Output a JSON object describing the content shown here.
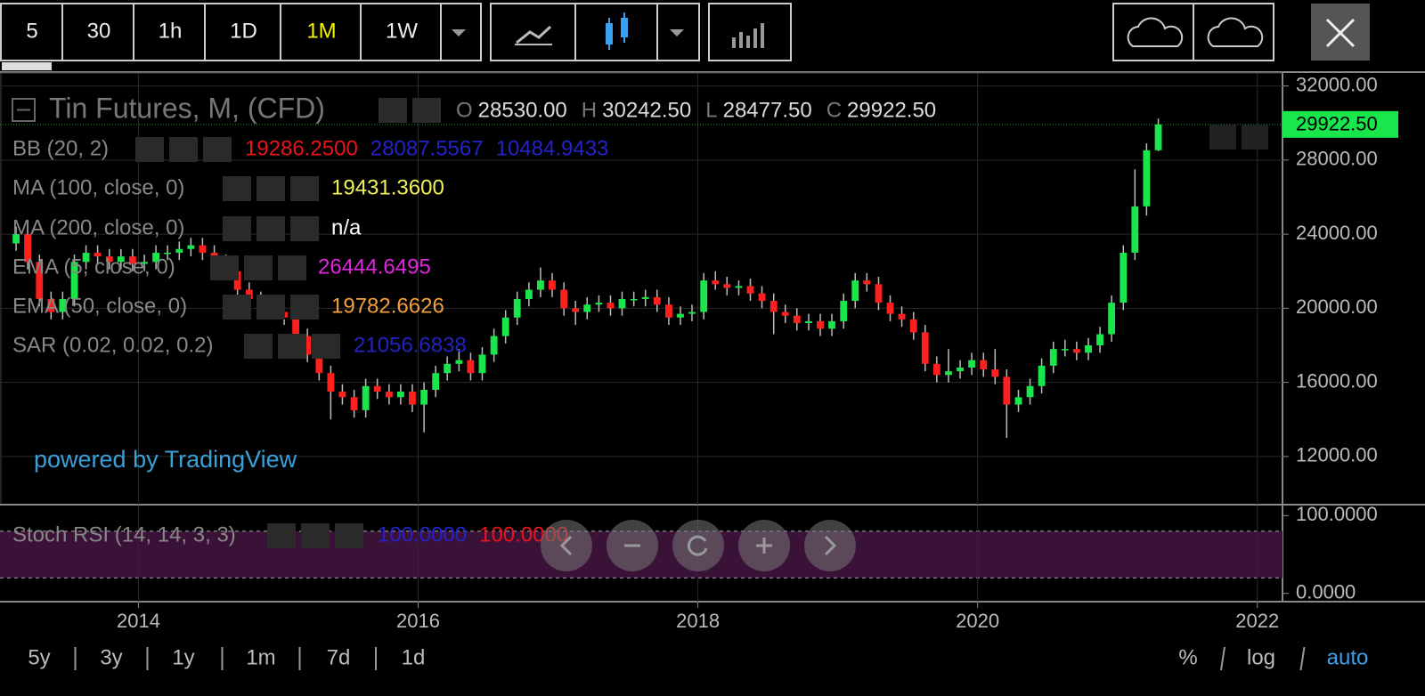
{
  "toolbar": {
    "intervals": [
      "5",
      "30",
      "1h",
      "1D",
      "1M",
      "1W"
    ],
    "active_interval": 4
  },
  "legend": {
    "symbol": "Tin Futures, M, (CFD)",
    "ohlc": [
      {
        "key": "O",
        "value": "28530.00"
      },
      {
        "key": "H",
        "value": "30242.50"
      },
      {
        "key": "L",
        "value": "28477.50"
      },
      {
        "key": "C",
        "value": "29922.50"
      }
    ]
  },
  "indicators": [
    {
      "name": "BB (20, 2)",
      "values": [
        {
          "text": "19286.2500",
          "color": "#e8141c"
        },
        {
          "text": "28087.5567",
          "color": "#2323c8"
        },
        {
          "text": "10484.9433",
          "color": "#2323c8"
        }
      ]
    },
    {
      "name": "MA (100, close, 0)",
      "values": [
        {
          "text": "19431.3600",
          "color": "#f2f25a"
        }
      ]
    },
    {
      "name": "MA (200, close, 0)",
      "values": [
        {
          "text": "n/a",
          "color": "#ffffff"
        }
      ]
    },
    {
      "name": "EMA (5, close, 0)",
      "values": [
        {
          "text": "26444.6495",
          "color": "#e026e0"
        }
      ]
    },
    {
      "name": "EMA (50, close, 0)",
      "values": [
        {
          "text": "19782.6626",
          "color": "#f0a03c"
        }
      ]
    },
    {
      "name": "SAR (0.02, 0.02, 0.2)",
      "values": [
        {
          "text": "21056.6838",
          "color": "#2323c0"
        }
      ]
    }
  ],
  "watermark": "powered by TradingView",
  "last_price": "29922.50",
  "chart_data": {
    "type": "candlestick",
    "x": [
      2013.125,
      2013.208,
      2013.292,
      2013.375,
      2013.458,
      2013.542,
      2013.625,
      2013.708,
      2013.792,
      2013.875,
      2013.958,
      2014.042,
      2014.125,
      2014.208,
      2014.292,
      2014.375,
      2014.458,
      2014.542,
      2014.625,
      2014.708,
      2014.792,
      2014.875,
      2014.958,
      2015.042,
      2015.125,
      2015.208,
      2015.292,
      2015.375,
      2015.458,
      2015.542,
      2015.625,
      2015.708,
      2015.792,
      2015.875,
      2015.958,
      2016.042,
      2016.125,
      2016.208,
      2016.292,
      2016.375,
      2016.458,
      2016.542,
      2016.625,
      2016.708,
      2016.792,
      2016.875,
      2016.958,
      2017.042,
      2017.125,
      2017.208,
      2017.292,
      2017.375,
      2017.458,
      2017.542,
      2017.625,
      2017.708,
      2017.792,
      2017.875,
      2017.958,
      2018.042,
      2018.125,
      2018.208,
      2018.292,
      2018.375,
      2018.458,
      2018.542,
      2018.625,
      2018.708,
      2018.792,
      2018.875,
      2018.958,
      2019.042,
      2019.125,
      2019.208,
      2019.292,
      2019.375,
      2019.458,
      2019.542,
      2019.625,
      2019.708,
      2019.792,
      2019.875,
      2019.958,
      2020.042,
      2020.125,
      2020.208,
      2020.292,
      2020.375,
      2020.458,
      2020.542,
      2020.625,
      2020.708,
      2020.792,
      2020.875,
      2020.958,
      2021.042,
      2021.125,
      2021.208,
      2021.292
    ],
    "open": [
      23500,
      24000,
      22500,
      20500,
      19800,
      20500,
      22500,
      23000,
      22800,
      22500,
      22800,
      22400,
      22500,
      23000,
      23000,
      23200,
      23400,
      23000,
      22500,
      22000,
      21000,
      20500,
      20200,
      19800,
      19500,
      18500,
      17500,
      16500,
      15500,
      15200,
      14500,
      15800,
      15500,
      15200,
      15500,
      14800,
      15600,
      16500,
      17000,
      17200,
      16500,
      17500,
      18500,
      19500,
      20500,
      21000,
      21500,
      21000,
      20000,
      19800,
      20200,
      20300,
      20000,
      20500,
      20500,
      20600,
      20200,
      19500,
      19700,
      19800,
      21500,
      21300,
      21100,
      21200,
      20800,
      20400,
      19800,
      19600,
      19200,
      19300,
      18900,
      19300,
      20400,
      21500,
      21300,
      20300,
      19700,
      19400,
      18700,
      17000,
      16400,
      16600,
      16800,
      17200,
      16700,
      16300,
      14800,
      15200,
      15800,
      16900,
      17800,
      17800,
      17600,
      18000,
      18600,
      20300,
      23000,
      25500,
      28530
    ],
    "high": [
      24400,
      24400,
      22900,
      20900,
      20900,
      22900,
      23400,
      23400,
      23200,
      23200,
      23200,
      22900,
      23400,
      23400,
      23600,
      23800,
      23800,
      23400,
      22900,
      22400,
      21400,
      20900,
      20600,
      20200,
      19900,
      18900,
      17900,
      16900,
      15900,
      15600,
      16200,
      16200,
      15900,
      15900,
      15900,
      16000,
      16900,
      17400,
      17800,
      17600,
      17900,
      18900,
      19900,
      20900,
      21400,
      22200,
      21900,
      21400,
      20400,
      20600,
      20700,
      20700,
      20900,
      20900,
      21000,
      21000,
      20600,
      20100,
      20200,
      21900,
      22000,
      21700,
      21500,
      21600,
      21200,
      20800,
      20200,
      20000,
      19700,
      19700,
      19700,
      20800,
      21900,
      21900,
      21700,
      20700,
      20100,
      19800,
      19100,
      17400,
      17800,
      17200,
      17600,
      17600,
      17800,
      16700,
      15600,
      16200,
      17300,
      18200,
      18300,
      18200,
      18400,
      19000,
      20700,
      23400,
      27500,
      28900,
      30242.5
    ],
    "low": [
      23100,
      22100,
      20100,
      19400,
      19400,
      20100,
      22100,
      22400,
      22100,
      22100,
      22000,
      22000,
      22100,
      22600,
      22600,
      22800,
      22600,
      22100,
      21600,
      20600,
      20100,
      19800,
      19400,
      19100,
      18100,
      17100,
      16100,
      14000,
      14800,
      14100,
      14100,
      15100,
      14800,
      14800,
      14400,
      13300,
      15200,
      16100,
      16600,
      16100,
      16100,
      17100,
      18100,
      19100,
      20100,
      20600,
      20600,
      19600,
      19100,
      19400,
      19800,
      19600,
      19600,
      20100,
      20100,
      19800,
      19100,
      19100,
      19300,
      19400,
      21000,
      20700,
      20700,
      20400,
      20000,
      18600,
      19200,
      18800,
      18800,
      18500,
      18500,
      18900,
      20000,
      20900,
      19900,
      19300,
      19000,
      18300,
      16600,
      16000,
      16000,
      16200,
      16400,
      16300,
      15900,
      13000,
      14400,
      14800,
      15400,
      16500,
      17400,
      17200,
      17200,
      17600,
      18200,
      19900,
      22600,
      25000,
      28477.5
    ],
    "close": [
      24000,
      22500,
      20500,
      19800,
      20500,
      22500,
      23000,
      22800,
      22500,
      22800,
      22400,
      22500,
      23000,
      23000,
      23200,
      23400,
      23000,
      22500,
      22000,
      21000,
      20500,
      20200,
      19800,
      19500,
      18500,
      17500,
      16500,
      15500,
      15200,
      14500,
      15800,
      15500,
      15200,
      15500,
      14800,
      15600,
      16500,
      17000,
      17200,
      16500,
      17500,
      18500,
      19500,
      20500,
      21000,
      21500,
      21000,
      20000,
      19800,
      20200,
      20300,
      20000,
      20500,
      20500,
      20600,
      20200,
      19500,
      19700,
      19800,
      21500,
      21300,
      21100,
      21200,
      20800,
      20400,
      19800,
      19600,
      19200,
      19300,
      18900,
      19300,
      20400,
      21500,
      21300,
      20300,
      19700,
      19400,
      18700,
      17000,
      16400,
      16600,
      16800,
      17200,
      16700,
      16300,
      14800,
      15200,
      15800,
      16900,
      17800,
      17800,
      17600,
      18000,
      18600,
      20300,
      23000,
      25500,
      28530,
      29922.5
    ],
    "up_color": "#19e64b",
    "down_color": "#ff1f1f",
    "xlim": [
      2013.01,
      2022.18
    ],
    "xticks": [
      2014,
      2016,
      2018,
      2020,
      2022
    ],
    "ylim": [
      9400,
      32700
    ],
    "yticks": [
      {
        "value": 12000,
        "label": "12000.00"
      },
      {
        "value": 16000,
        "label": "16000.00"
      },
      {
        "value": 20000,
        "label": "20000.00"
      },
      {
        "value": 24000,
        "label": "24000.00"
      },
      {
        "value": 28000,
        "label": "28000.00"
      },
      {
        "value": 32000,
        "label": "32000.00"
      }
    ],
    "grid": true
  },
  "stoch": {
    "name": "Stoch RSI (14, 14, 3, 3)",
    "values": [
      {
        "text": "100.0000",
        "color": "#2323c8"
      },
      {
        "text": "100.0000",
        "color": "#e8141c"
      }
    ],
    "ylim": [
      -10.6,
      113
    ],
    "yticks": [
      {
        "value": 100,
        "label": "100.0000"
      },
      {
        "value": 0,
        "label": "0.0000"
      }
    ],
    "band": [
      20,
      80
    ]
  },
  "ranges": [
    "5y",
    "3y",
    "1y",
    "1m",
    "7d",
    "1d"
  ],
  "scale_options": [
    "%",
    "log",
    "auto"
  ],
  "active_scale": 2
}
